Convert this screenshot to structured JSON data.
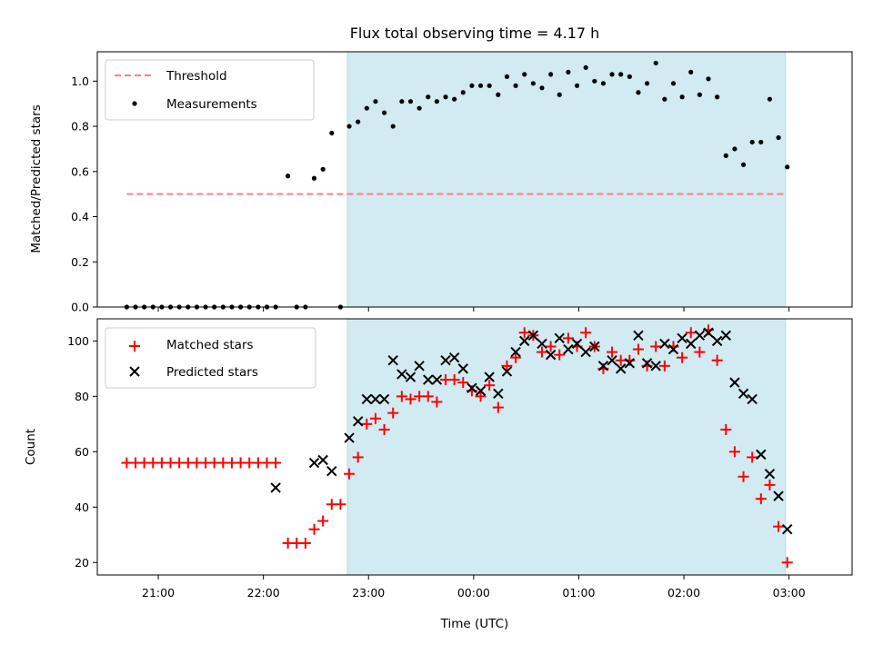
{
  "figure": {
    "title": "Flux total observing time = 4.17 h",
    "x_label": "Time (UTC)"
  },
  "chart_data": [
    {
      "type": "scatter",
      "ylabel": "Matched/Predicted stars",
      "ylim": [
        0,
        1.13
      ],
      "yticks": [
        0.0,
        0.2,
        0.4,
        0.6,
        0.8,
        1.0
      ],
      "ytick_labels": [
        "0.0",
        "0.2",
        "0.4",
        "0.6",
        "0.8",
        "1.0"
      ],
      "xlim": [
        20.42,
        3.6
      ],
      "xticks": [
        "21:00",
        "22:00",
        "23:00",
        "00:00",
        "01:00",
        "02:00",
        "03:00"
      ],
      "grid": false,
      "legend": "top-left",
      "shaded_interval": {
        "start": "22:48",
        "end": "02:58",
        "color": "#add8e6"
      },
      "series": [
        {
          "name": "Threshold",
          "kind": "hline",
          "y": 0.5,
          "x_range": [
            "20:42",
            "02:58"
          ],
          "color": "#ff7f7f",
          "style": "dashed"
        },
        {
          "name": "Measurements",
          "kind": "points",
          "color": "#000000",
          "points": [
            [
              "20:42",
              0.0
            ],
            [
              "20:47",
              0.0
            ],
            [
              "20:52",
              0.0
            ],
            [
              "20:57",
              0.0
            ],
            [
              "21:02",
              0.0
            ],
            [
              "21:07",
              0.0
            ],
            [
              "21:12",
              0.0
            ],
            [
              "21:17",
              0.0
            ],
            [
              "21:22",
              0.0
            ],
            [
              "21:27",
              0.0
            ],
            [
              "21:32",
              0.0
            ],
            [
              "21:37",
              0.0
            ],
            [
              "21:42",
              0.0
            ],
            [
              "21:47",
              0.0
            ],
            [
              "21:52",
              0.0
            ],
            [
              "21:57",
              0.0
            ],
            [
              "22:02",
              0.0
            ],
            [
              "22:07",
              0.0
            ],
            [
              "22:14",
              0.58
            ],
            [
              "22:19",
              0.0
            ],
            [
              "22:24",
              0.0
            ],
            [
              "22:29",
              0.57
            ],
            [
              "22:34",
              0.61
            ],
            [
              "22:39",
              0.77
            ],
            [
              "22:44",
              0.0
            ],
            [
              "22:49",
              0.8
            ],
            [
              "22:54",
              0.82
            ],
            [
              "22:59",
              0.88
            ],
            [
              "23:04",
              0.91
            ],
            [
              "23:09",
              0.86
            ],
            [
              "23:14",
              0.8
            ],
            [
              "23:19",
              0.91
            ],
            [
              "23:24",
              0.91
            ],
            [
              "23:29",
              0.88
            ],
            [
              "23:34",
              0.93
            ],
            [
              "23:39",
              0.91
            ],
            [
              "23:44",
              0.93
            ],
            [
              "23:49",
              0.92
            ],
            [
              "23:54",
              0.95
            ],
            [
              "23:59",
              0.98
            ],
            [
              "00:04",
              0.98
            ],
            [
              "00:09",
              0.98
            ],
            [
              "00:14",
              0.94
            ],
            [
              "00:19",
              1.02
            ],
            [
              "00:24",
              0.98
            ],
            [
              "00:29",
              1.03
            ],
            [
              "00:34",
              0.99
            ],
            [
              "00:39",
              0.97
            ],
            [
              "00:44",
              1.03
            ],
            [
              "00:49",
              0.94
            ],
            [
              "00:54",
              1.04
            ],
            [
              "00:59",
              0.98
            ],
            [
              "01:04",
              1.06
            ],
            [
              "01:09",
              1.0
            ],
            [
              "01:14",
              0.99
            ],
            [
              "01:19",
              1.03
            ],
            [
              "01:24",
              1.03
            ],
            [
              "01:29",
              1.02
            ],
            [
              "01:34",
              0.95
            ],
            [
              "01:39",
              0.99
            ],
            [
              "01:44",
              1.08
            ],
            [
              "01:49",
              0.92
            ],
            [
              "01:54",
              0.99
            ],
            [
              "01:59",
              0.93
            ],
            [
              "02:04",
              1.04
            ],
            [
              "02:09",
              0.94
            ],
            [
              "02:14",
              1.01
            ],
            [
              "02:19",
              0.93
            ],
            [
              "02:24",
              0.67
            ],
            [
              "02:29",
              0.7
            ],
            [
              "02:34",
              0.63
            ],
            [
              "02:39",
              0.73
            ],
            [
              "02:44",
              0.73
            ],
            [
              "02:49",
              0.92
            ],
            [
              "02:54",
              0.75
            ],
            [
              "02:59",
              0.62
            ]
          ]
        }
      ]
    },
    {
      "type": "scatter",
      "ylabel": "Count",
      "ylim": [
        15.5,
        108
      ],
      "yticks": [
        20,
        40,
        60,
        80,
        100
      ],
      "ytick_labels": [
        "20",
        "40",
        "60",
        "80",
        "100"
      ],
      "xlim": [
        20.42,
        3.6
      ],
      "xticks": [
        "21:00",
        "22:00",
        "23:00",
        "00:00",
        "01:00",
        "02:00",
        "03:00"
      ],
      "grid": false,
      "legend": "top-left",
      "shaded_interval": {
        "start": "22:48",
        "end": "02:58",
        "color": "#add8e6"
      },
      "series": [
        {
          "name": "Matched stars",
          "kind": "plus",
          "color": "#ff0000",
          "points": [
            [
              "20:42",
              56
            ],
            [
              "20:47",
              56
            ],
            [
              "20:52",
              56
            ],
            [
              "20:57",
              56
            ],
            [
              "21:02",
              56
            ],
            [
              "21:07",
              56
            ],
            [
              "21:12",
              56
            ],
            [
              "21:17",
              56
            ],
            [
              "21:22",
              56
            ],
            [
              "21:27",
              56
            ],
            [
              "21:32",
              56
            ],
            [
              "21:37",
              56
            ],
            [
              "21:42",
              56
            ],
            [
              "21:47",
              56
            ],
            [
              "21:52",
              56
            ],
            [
              "21:57",
              56
            ],
            [
              "22:02",
              56
            ],
            [
              "22:07",
              56
            ],
            [
              "22:14",
              27
            ],
            [
              "22:19",
              27
            ],
            [
              "22:24",
              27
            ],
            [
              "22:29",
              32
            ],
            [
              "22:34",
              35
            ],
            [
              "22:39",
              41
            ],
            [
              "22:44",
              41
            ],
            [
              "22:49",
              52
            ],
            [
              "22:54",
              58
            ],
            [
              "22:59",
              70
            ],
            [
              "23:04",
              72
            ],
            [
              "23:09",
              68
            ],
            [
              "23:14",
              74
            ],
            [
              "23:19",
              80
            ],
            [
              "23:24",
              79
            ],
            [
              "23:29",
              80
            ],
            [
              "23:34",
              80
            ],
            [
              "23:39",
              78
            ],
            [
              "23:44",
              86
            ],
            [
              "23:49",
              86
            ],
            [
              "23:54",
              85
            ],
            [
              "23:59",
              82
            ],
            [
              "00:04",
              80
            ],
            [
              "00:09",
              84
            ],
            [
              "00:14",
              76
            ],
            [
              "00:19",
              91
            ],
            [
              "00:24",
              94
            ],
            [
              "00:29",
              103
            ],
            [
              "00:34",
              102
            ],
            [
              "00:39",
              96
            ],
            [
              "00:44",
              98
            ],
            [
              "00:49",
              95
            ],
            [
              "00:54",
              101
            ],
            [
              "00:59",
              98
            ],
            [
              "01:04",
              103
            ],
            [
              "01:09",
              98
            ],
            [
              "01:14",
              90
            ],
            [
              "01:19",
              96
            ],
            [
              "01:24",
              93
            ],
            [
              "01:29",
              93
            ],
            [
              "01:34",
              97
            ],
            [
              "01:39",
              91
            ],
            [
              "01:44",
              98
            ],
            [
              "01:49",
              91
            ],
            [
              "01:54",
              98
            ],
            [
              "01:59",
              94
            ],
            [
              "02:04",
              103
            ],
            [
              "02:09",
              96
            ],
            [
              "02:14",
              104
            ],
            [
              "02:19",
              93
            ],
            [
              "02:24",
              68
            ],
            [
              "02:29",
              60
            ],
            [
              "02:34",
              51
            ],
            [
              "02:39",
              58
            ],
            [
              "02:44",
              43
            ],
            [
              "02:49",
              48
            ],
            [
              "02:54",
              33
            ],
            [
              "02:59",
              20
            ]
          ]
        },
        {
          "name": "Predicted stars",
          "kind": "x",
          "color": "#000000",
          "points": [
            [
              "22:07",
              47
            ],
            [
              "22:29",
              56
            ],
            [
              "22:34",
              57
            ],
            [
              "22:39",
              53
            ],
            [
              "22:49",
              65
            ],
            [
              "22:54",
              71
            ],
            [
              "22:59",
              79
            ],
            [
              "23:04",
              79
            ],
            [
              "23:09",
              79
            ],
            [
              "23:14",
              93
            ],
            [
              "23:19",
              88
            ],
            [
              "23:24",
              87
            ],
            [
              "23:29",
              91
            ],
            [
              "23:34",
              86
            ],
            [
              "23:39",
              86
            ],
            [
              "23:44",
              93
            ],
            [
              "23:49",
              94
            ],
            [
              "23:54",
              90
            ],
            [
              "23:59",
              83
            ],
            [
              "00:04",
              82
            ],
            [
              "00:09",
              87
            ],
            [
              "00:14",
              81
            ],
            [
              "00:19",
              89
            ],
            [
              "00:24",
              96
            ],
            [
              "00:29",
              100
            ],
            [
              "00:34",
              102
            ],
            [
              "00:39",
              99
            ],
            [
              "00:44",
              95
            ],
            [
              "00:49",
              101
            ],
            [
              "00:54",
              97
            ],
            [
              "00:59",
              99
            ],
            [
              "01:04",
              96
            ],
            [
              "01:09",
              98
            ],
            [
              "01:14",
              91
            ],
            [
              "01:19",
              93
            ],
            [
              "01:24",
              90
            ],
            [
              "01:29",
              92
            ],
            [
              "01:34",
              102
            ],
            [
              "01:39",
              92
            ],
            [
              "01:44",
              91
            ],
            [
              "01:49",
              99
            ],
            [
              "01:54",
              97
            ],
            [
              "01:59",
              101
            ],
            [
              "02:04",
              99
            ],
            [
              "02:09",
              102
            ],
            [
              "02:14",
              103
            ],
            [
              "02:19",
              100
            ],
            [
              "02:24",
              102
            ],
            [
              "02:29",
              85
            ],
            [
              "02:34",
              81
            ],
            [
              "02:39",
              79
            ],
            [
              "02:44",
              59
            ],
            [
              "02:49",
              52
            ],
            [
              "02:54",
              44
            ],
            [
              "02:59",
              32
            ]
          ]
        }
      ]
    }
  ]
}
